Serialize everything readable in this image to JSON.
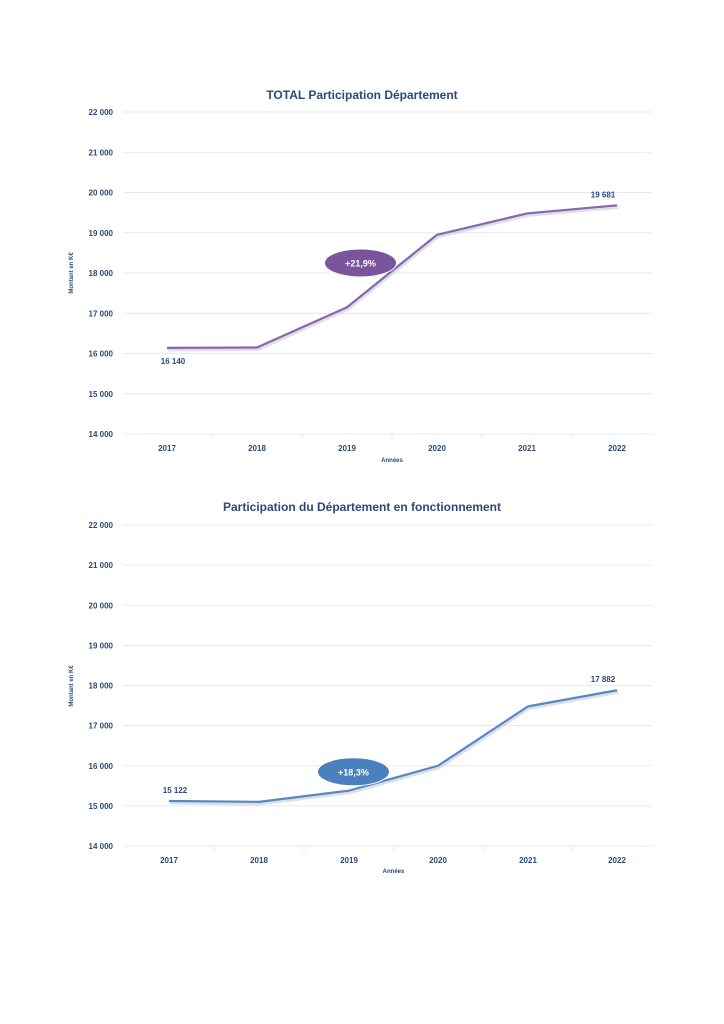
{
  "chart_data": [
    {
      "type": "line",
      "title": "TOTAL Participation Département",
      "xlabel": "Années",
      "ylabel": "Montant en K€",
      "categories": [
        "2017",
        "2018",
        "2019",
        "2020",
        "2021",
        "2022"
      ],
      "series": [
        {
          "values": [
            16140,
            16150,
            17150,
            18950,
            19480,
            19681
          ]
        }
      ],
      "ylim": [
        14000,
        22000
      ],
      "yticks": [
        "14 000",
        "15 000",
        "16 000",
        "17 000",
        "18 000",
        "19 000",
        "20 000",
        "21 000",
        "22 000"
      ],
      "data_labels": [
        {
          "index": 0,
          "text": "16 140"
        },
        {
          "index": 5,
          "text": "19 681"
        }
      ],
      "annotation": {
        "text": "+21,9%",
        "x": 2.15,
        "y": 18250,
        "color": "#7a559d"
      },
      "line_color": "#8a67a8",
      "grid": true
    },
    {
      "type": "line",
      "title": "Participation du Département en fonctionnement",
      "xlabel": "Années",
      "ylabel": "Montant en K€",
      "categories": [
        "2017",
        "2018",
        "2019",
        "2020",
        "2021",
        "2022"
      ],
      "series": [
        {
          "values": [
            15122,
            15100,
            15380,
            16000,
            17480,
            17882
          ]
        }
      ],
      "ylim": [
        14000,
        22000
      ],
      "yticks": [
        "14 000",
        "15 000",
        "16 000",
        "17 000",
        "18 000",
        "19 000",
        "20 000",
        "21 000",
        "22 000"
      ],
      "data_labels": [
        {
          "index": 0,
          "text": "15 122"
        },
        {
          "index": 5,
          "text": "17 882"
        }
      ],
      "annotation": {
        "text": "+18,3%",
        "x": 2.05,
        "y": 15850,
        "color": "#4a7fc0"
      },
      "line_color": "#5b86c4",
      "grid": true
    }
  ]
}
